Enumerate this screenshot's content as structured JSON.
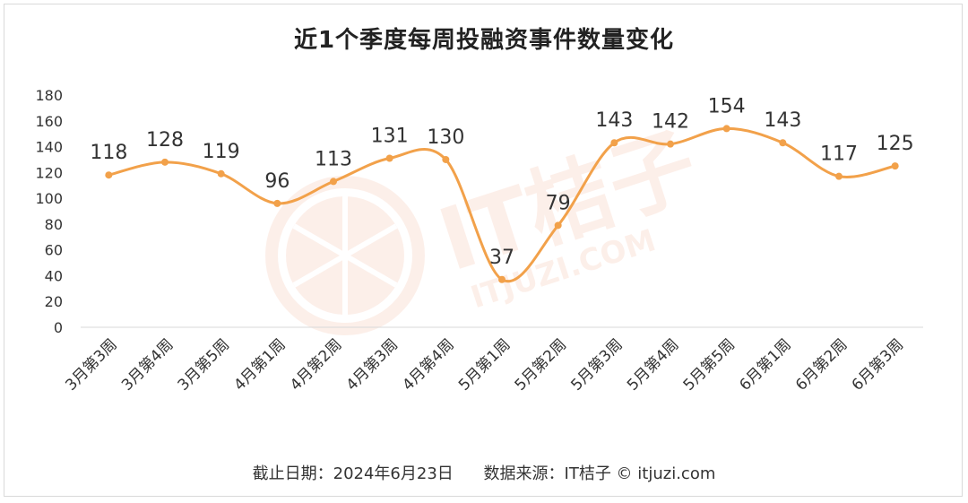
{
  "chart_data": {
    "type": "line",
    "title": "近1个季度每周投融资事件数量变化",
    "categories": [
      "3月第3周",
      "3月第4周",
      "3月第5周",
      "4月第1周",
      "4月第2周",
      "4月第3周",
      "4月第4周",
      "5月第1周",
      "5月第2周",
      "5月第3周",
      "5月第4周",
      "5月第5周",
      "6月第1周",
      "6月第2周",
      "6月第3周"
    ],
    "values": [
      118,
      128,
      119,
      96,
      113,
      131,
      130,
      37,
      79,
      143,
      142,
      154,
      143,
      117,
      125
    ],
    "ylim": [
      0,
      180
    ],
    "yticks": [
      0,
      20,
      40,
      60,
      80,
      100,
      120,
      140,
      160,
      180
    ],
    "xlabel": "",
    "ylabel": "",
    "color": "#F2A14A",
    "grid": false,
    "smooth": true
  },
  "footer": {
    "date_text": "截止日期：2024年6月23日",
    "source_text": "数据来源：IT桔子 © itjuzi.com"
  },
  "watermark": {
    "text": "IT桔子",
    "subtext": "ITJUZI.COM",
    "icon": "orange-slice-logo"
  }
}
